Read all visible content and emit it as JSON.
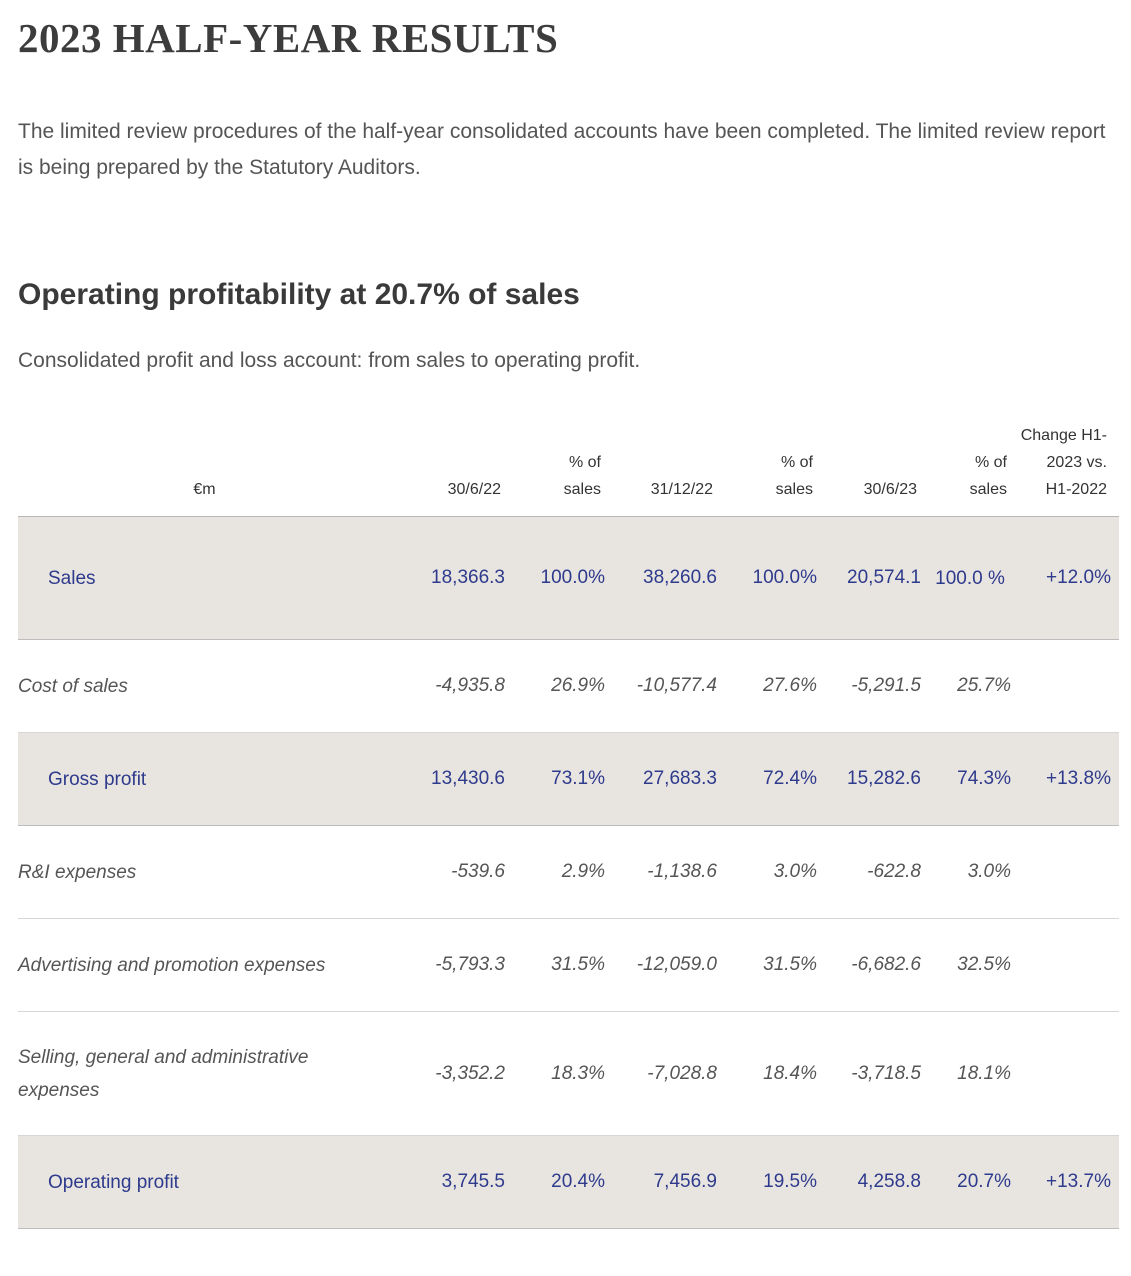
{
  "page": {
    "title": "2023 HALF-YEAR RESULTS",
    "intro": "The limited review procedures of the half-year consolidated accounts have been completed. The limited review report is being prepared by the Statutory Auditors.",
    "section_title": "Operating profitability at 20.7% of sales",
    "section_subtitle": "Consolidated profit and loss account: from sales to operating profit."
  },
  "table": {
    "headers": [
      "€m",
      "30/6/22",
      "% of sales",
      "31/12/22",
      "% of sales",
      "30/6/23",
      "% of sales",
      "Change H1-2023 vs. H1-2022"
    ],
    "rows": [
      {
        "label": "Sales",
        "v1": "18,366.3",
        "p1": "100.0%",
        "v2": "38,260.6",
        "p2": "100.0%",
        "v3": "20,574.1",
        "p3": "100.0 %",
        "change": "+12.0%"
      },
      {
        "label": "Cost of sales",
        "v1": "-4,935.8",
        "p1": "26.9%",
        "v2": "-10,577.4",
        "p2": "27.6%",
        "v3": "-5,291.5",
        "p3": "25.7%",
        "change": ""
      },
      {
        "label": "Gross profit",
        "v1": "13,430.6",
        "p1": "73.1%",
        "v2": "27,683.3",
        "p2": "72.4%",
        "v3": "15,282.6",
        "p3": "74.3%",
        "change": "+13.8%"
      },
      {
        "label": "R&I expenses",
        "v1": "-539.6",
        "p1": "2.9%",
        "v2": "-1,138.6",
        "p2": "3.0%",
        "v3": "-622.8",
        "p3": "3.0%",
        "change": ""
      },
      {
        "label": "Advertising and promotion expenses",
        "v1": "-5,793.3",
        "p1": "31.5%",
        "v2": "-12,059.0",
        "p2": "31.5%",
        "v3": "-6,682.6",
        "p3": "32.5%",
        "change": ""
      },
      {
        "label": "Selling, general and administrative expenses",
        "v1": "-3,352.2",
        "p1": "18.3%",
        "v2": "-7,028.8",
        "p2": "18.4%",
        "v3": "-3,718.5",
        "p3": "18.1%",
        "change": ""
      },
      {
        "label": "Operating profit",
        "v1": "3,745.5",
        "p1": "20.4%",
        "v2": "7,456.9",
        "p2": "19.5%",
        "v3": "4,258.8",
        "p3": "20.7%",
        "change": "+13.7%"
      }
    ]
  },
  "colors": {
    "highlight_bg": "#e8e5e1",
    "highlight_text": "#2e3a8c"
  }
}
